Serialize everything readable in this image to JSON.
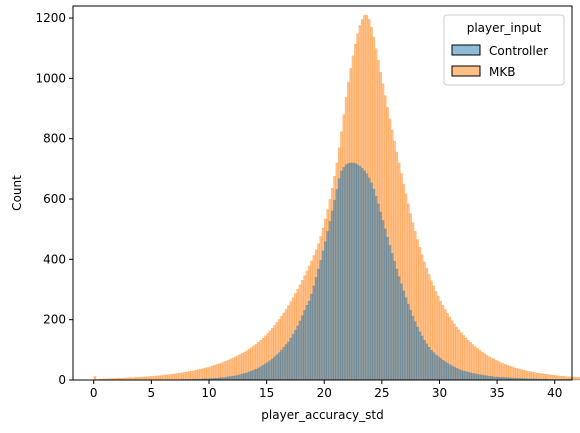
{
  "chart_data": {
    "type": "histogram",
    "title": "",
    "xlabel": "player_accuracy_std",
    "ylabel": "Count",
    "xlim": [
      -1.8,
      41.5
    ],
    "ylim": [
      0,
      1240
    ],
    "xticks": [
      0,
      5,
      10,
      15,
      20,
      25,
      30,
      35,
      40
    ],
    "yticks": [
      0,
      200,
      400,
      600,
      800,
      1000,
      1200
    ],
    "bin_start": 0,
    "bin_width": 0.2,
    "grid": false,
    "legend": {
      "title": "player_input",
      "position": "top-right"
    },
    "series": [
      {
        "name": "Controller",
        "color": "#1f77b4",
        "alpha": 0.5,
        "counts": [
          0,
          0,
          0,
          0,
          0,
          0,
          0,
          0,
          0,
          0,
          0,
          0,
          0,
          0,
          0,
          0,
          0,
          0,
          0,
          0,
          0,
          0,
          0,
          0,
          0,
          0,
          0,
          0,
          1,
          1,
          1,
          1,
          1,
          1,
          1,
          1,
          1,
          1,
          2,
          2,
          2,
          2,
          2,
          3,
          3,
          3,
          3,
          4,
          4,
          4,
          5,
          5,
          6,
          6,
          7,
          8,
          8,
          9,
          11,
          12,
          13,
          14,
          16,
          18,
          20,
          22,
          24,
          27,
          30,
          33,
          36,
          40,
          44,
          49,
          54,
          59,
          64,
          70,
          77,
          84,
          91,
          100,
          109,
          118,
          127,
          139,
          152,
          165,
          180,
          196,
          213,
          231,
          248,
          262,
          285,
          312,
          341,
          368,
          397,
          428,
          459,
          493,
          526,
          561,
          596,
          632,
          668,
          693,
          705,
          714,
          718,
          720,
          720,
          718,
          714,
          709,
          702,
          694,
          684,
          670,
          654,
          633,
          610,
          584,
          557,
          529,
          501,
          474,
          447,
          420,
          394,
          368,
          343,
          319,
          296,
          273,
          252,
          232,
          212,
          194,
          176,
          160,
          146,
          132,
          120,
          109,
          99,
          91,
          84,
          78,
          72,
          66,
          61,
          56,
          51,
          47,
          43,
          39,
          36,
          33,
          30,
          28,
          26,
          24,
          22,
          21,
          19,
          18,
          17,
          15,
          14,
          13,
          12,
          11,
          10,
          10,
          9,
          9,
          8,
          8,
          7,
          7,
          6,
          6,
          6,
          5,
          5,
          5,
          4,
          4,
          4,
          4,
          3,
          3,
          3,
          3,
          3,
          2,
          2,
          2,
          2,
          2,
          2,
          2,
          2,
          2,
          2,
          2,
          1,
          1,
          1,
          1,
          1,
          1,
          1,
          1,
          1,
          1,
          1,
          1,
          1,
          1,
          1,
          1,
          1,
          1,
          1,
          1,
          0,
          0,
          0,
          0,
          0,
          0,
          0,
          0,
          0,
          0,
          0,
          0,
          0,
          0,
          0,
          0,
          0,
          0,
          0,
          0,
          0,
          0,
          0,
          0,
          0,
          0,
          0,
          0,
          0,
          0,
          0,
          0,
          0,
          0,
          0,
          0,
          0,
          0,
          0,
          0,
          0,
          0,
          0,
          0,
          0,
          0,
          0,
          0,
          0,
          0,
          0,
          0,
          0,
          0,
          0,
          0,
          0,
          0,
          0,
          0,
          0,
          0,
          0,
          0,
          0,
          0,
          0,
          0,
          0,
          0,
          0,
          0,
          0,
          0,
          0,
          0,
          0,
          0,
          0,
          0,
          0,
          0,
          0,
          0,
          0,
          0,
          0,
          0,
          0,
          0,
          0,
          0,
          0,
          0,
          0,
          0,
          0,
          0,
          0,
          0,
          0,
          0,
          0,
          0,
          0,
          0,
          0,
          0,
          0,
          0,
          0,
          0,
          0,
          0,
          0,
          0,
          0,
          0,
          0,
          0,
          0,
          0,
          0,
          0,
          0,
          0,
          0,
          0,
          0,
          0,
          0,
          0,
          0,
          0,
          0,
          0,
          0,
          0,
          0,
          0,
          0,
          0,
          0,
          0,
          0,
          0,
          0,
          0,
          0,
          0,
          0,
          0,
          0,
          0,
          0,
          0,
          0,
          0,
          0,
          0,
          0,
          0,
          0,
          0,
          0,
          0,
          0,
          0,
          0,
          0,
          0,
          0,
          0,
          0,
          0,
          0,
          0,
          0,
          0,
          0,
          0
        ]
      },
      {
        "name": "MKB",
        "color": "#ff7f0e",
        "alpha": 0.5,
        "counts": [
          12,
          2,
          3,
          3,
          4,
          4,
          4,
          5,
          5,
          5,
          6,
          6,
          6,
          7,
          7,
          8,
          8,
          8,
          9,
          9,
          10,
          10,
          11,
          11,
          12,
          12,
          13,
          14,
          14,
          15,
          16,
          17,
          18,
          19,
          20,
          21,
          22,
          23,
          24,
          26,
          27,
          28,
          30,
          31,
          33,
          35,
          36,
          38,
          40,
          42,
          44,
          47,
          49,
          52,
          54,
          57,
          60,
          63,
          66,
          70,
          73,
          77,
          81,
          85,
          89,
          93,
          98,
          103,
          108,
          114,
          119,
          126,
          132,
          139,
          147,
          155,
          163,
          172,
          181,
          191,
          201,
          212,
          223,
          235,
          247,
          260,
          273,
          287,
          301,
          316,
          331,
          346,
          362,
          378,
          395,
          413,
          432,
          452,
          476,
          504,
          534,
          565,
          599,
          636,
          676,
          720,
          770,
          823,
          880,
          937,
          988,
          1033,
          1075,
          1114,
          1148,
          1176,
          1196,
          1209,
          1210,
          1196,
          1170,
          1137,
          1099,
          1060,
          1021,
          982,
          943,
          904,
          866,
          829,
          792,
          756,
          720,
          685,
          650,
          617,
          584,
          552,
          522,
          493,
          466,
          440,
          416,
          392,
          371,
          350,
          330,
          312,
          294,
          278,
          262,
          248,
          234,
          221,
          209,
          197,
          186,
          176,
          166,
          157,
          148,
          140,
          132,
          125,
          118,
          111,
          105,
          99,
          93,
          88,
          83,
          78,
          74,
          70,
          66,
          62,
          58,
          55,
          52,
          49,
          46,
          44,
          41,
          39,
          37,
          35,
          33,
          31,
          29,
          28,
          26,
          25,
          23,
          22,
          21,
          20,
          19,
          18,
          17,
          16,
          15,
          14,
          13,
          13,
          12,
          11,
          11,
          10,
          10,
          9,
          9,
          8,
          8,
          7,
          7,
          7,
          6,
          6,
          6,
          5,
          5,
          5,
          5,
          4,
          4,
          4,
          4,
          4,
          3,
          3,
          3,
          3,
          3,
          3,
          3,
          2,
          2,
          2,
          2,
          2,
          2,
          2,
          2,
          2,
          2,
          2,
          1,
          1,
          1,
          1,
          1,
          1,
          1,
          1,
          1,
          1,
          1,
          1,
          1,
          1,
          1,
          1,
          1,
          1,
          1,
          1,
          1,
          1,
          1,
          1,
          1,
          1,
          1,
          1,
          1,
          1,
          1,
          1,
          1,
          1,
          1,
          1,
          1,
          1,
          1,
          1,
          1,
          1,
          1,
          1,
          1,
          1,
          1,
          1,
          1,
          1,
          1,
          1,
          1,
          1,
          1,
          1,
          1,
          1,
          1,
          1,
          1,
          1,
          1,
          1,
          1,
          1,
          1,
          1,
          1,
          0,
          0,
          0,
          0,
          0,
          0,
          0,
          0,
          0,
          0,
          0,
          0,
          0,
          0,
          0,
          0,
          0,
          0,
          0,
          0,
          0,
          0,
          0,
          0,
          0,
          0,
          0,
          0,
          0,
          0,
          0,
          0,
          0,
          0,
          0,
          0,
          0,
          0,
          0,
          0,
          0,
          0,
          0,
          0,
          0,
          0,
          0,
          0,
          0,
          0,
          0,
          0,
          0,
          0,
          0,
          0,
          0,
          0,
          0,
          0,
          0,
          0,
          0,
          0,
          0,
          0,
          0,
          0,
          0,
          0,
          0,
          0,
          0,
          0,
          0,
          0,
          0,
          0,
          0,
          0,
          0,
          0,
          0,
          0,
          0,
          0,
          0,
          0,
          0,
          0,
          0,
          0,
          0,
          0,
          0,
          0,
          0
        ]
      }
    ]
  }
}
